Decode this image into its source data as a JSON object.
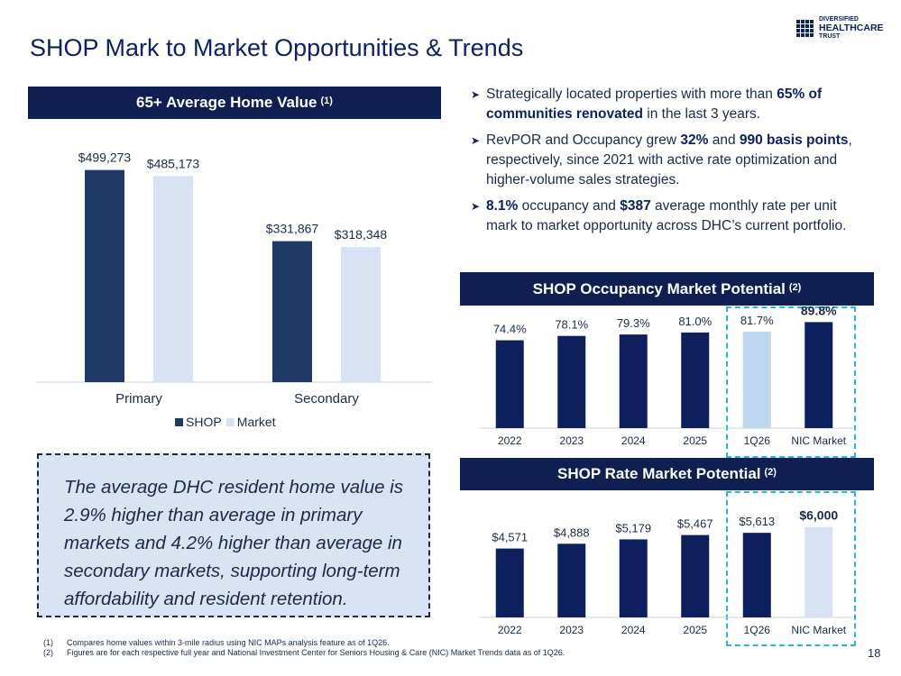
{
  "page": {
    "title": "SHOP Mark to Market Opportunities & Trends",
    "page_number": "18"
  },
  "logo": {
    "line1": "DIVERSIFIED",
    "line2": "HEALTHCARE",
    "line3": "TRUST"
  },
  "bullets": [
    {
      "parts": [
        {
          "t": "Strategically located properties with more than ",
          "b": false
        },
        {
          "t": "65% of communities renovated",
          "b": true
        },
        {
          "t": " in the last 3 years.",
          "b": false
        }
      ]
    },
    {
      "parts": [
        {
          "t": "RevPOR and Occupancy grew ",
          "b": false
        },
        {
          "t": "32%",
          "b": true
        },
        {
          "t": " and ",
          "b": false
        },
        {
          "t": "990 basis points",
          "b": true
        },
        {
          "t": ", respectively, since 2021 with active rate optimization and higher-volume sales strategies.",
          "b": false
        }
      ]
    },
    {
      "parts": [
        {
          "t": "8.1%",
          "b": true
        },
        {
          "t": " occupancy and ",
          "b": false
        },
        {
          "t": "$387",
          "b": true
        },
        {
          "t": " average monthly rate per unit mark to market opportunity across DHC’s current portfolio.",
          "b": false
        }
      ]
    }
  ],
  "callout": "The average DHC resident home value is 2.9% higher than average in primary markets and 4.2% higher than average in secondary markets, supporting long-term affordability and resident retention.",
  "footnotes": [
    {
      "num": "(1)",
      "text": "Compares home values within 3-mile radius using NIC MAPs analysis feature as of 1Q26."
    },
    {
      "num": "(2)",
      "text": "Figures are for each respective full year and National Investment Center for Seniors Housing & Care (NIC) Market Trends data as of 1Q26."
    }
  ],
  "colors": {
    "navy": "#0f1f52",
    "bar_dark": "#1f3864",
    "bar_light": "#d9e2f3",
    "bar_occ_dark": "#0d1f5c",
    "bar_occ_light": "#bdd7ee",
    "highlight_border": "#2bb3e6"
  },
  "chart_data": [
    {
      "type": "bar",
      "title": "65+ Average Home Value",
      "title_note": "(1)",
      "categories": [
        "Primary",
        "Secondary"
      ],
      "series": [
        {
          "name": "SHOP",
          "values": [
            499273,
            331867
          ],
          "labels": [
            "$499,273",
            "$331,867"
          ]
        },
        {
          "name": "Market",
          "values": [
            485173,
            318348
          ],
          "labels": [
            "$485,173",
            "$318,348"
          ]
        }
      ],
      "ylim": [
        0,
        560000
      ],
      "legend": "bottom",
      "grid": false
    },
    {
      "type": "bar",
      "title": "SHOP Occupancy Market Potential",
      "title_note": "(2)",
      "categories": [
        "2022",
        "2023",
        "2024",
        "2025",
        "1Q26",
        "NIC Market"
      ],
      "values": [
        74.4,
        78.1,
        79.3,
        81.0,
        81.7,
        89.8
      ],
      "labels": [
        "74.4%",
        "78.1%",
        "79.3%",
        "81.0%",
        "81.7%",
        "89.8%"
      ],
      "ylim": [
        0,
        100
      ],
      "highlight_categories": [
        "1Q26",
        "NIC Market"
      ],
      "grid": false
    },
    {
      "type": "bar",
      "title": "SHOP Rate Market Potential",
      "title_note": "(2)",
      "categories": [
        "2022",
        "2023",
        "2024",
        "2025",
        "1Q26",
        "NIC Market"
      ],
      "values": [
        4571,
        4888,
        5179,
        5467,
        5613,
        6000
      ],
      "labels": [
        "$4,571",
        "$4,888",
        "$5,179",
        "$5,467",
        "$5,613",
        "$6,000"
      ],
      "ylim": [
        0,
        6700
      ],
      "highlight_categories": [
        "1Q26",
        "NIC Market"
      ],
      "grid": false
    }
  ]
}
